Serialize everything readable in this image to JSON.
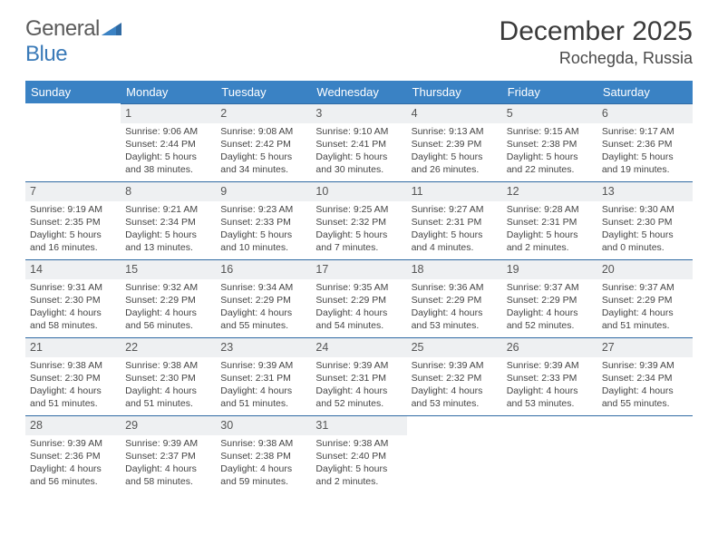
{
  "brand": {
    "part1": "General",
    "part2": "Blue"
  },
  "title": "December 2025",
  "location": "Rochegda, Russia",
  "header_bg": "#3a82c4",
  "header_text": "#ffffff",
  "daynum_bg": "#eef0f2",
  "border_color": "#2f6aa3",
  "weekdays": [
    "Sunday",
    "Monday",
    "Tuesday",
    "Wednesday",
    "Thursday",
    "Friday",
    "Saturday"
  ],
  "weeks": [
    [
      null,
      {
        "n": "1",
        "sr": "Sunrise: 9:06 AM",
        "ss": "Sunset: 2:44 PM",
        "d1": "Daylight: 5 hours",
        "d2": "and 38 minutes."
      },
      {
        "n": "2",
        "sr": "Sunrise: 9:08 AM",
        "ss": "Sunset: 2:42 PM",
        "d1": "Daylight: 5 hours",
        "d2": "and 34 minutes."
      },
      {
        "n": "3",
        "sr": "Sunrise: 9:10 AM",
        "ss": "Sunset: 2:41 PM",
        "d1": "Daylight: 5 hours",
        "d2": "and 30 minutes."
      },
      {
        "n": "4",
        "sr": "Sunrise: 9:13 AM",
        "ss": "Sunset: 2:39 PM",
        "d1": "Daylight: 5 hours",
        "d2": "and 26 minutes."
      },
      {
        "n": "5",
        "sr": "Sunrise: 9:15 AM",
        "ss": "Sunset: 2:38 PM",
        "d1": "Daylight: 5 hours",
        "d2": "and 22 minutes."
      },
      {
        "n": "6",
        "sr": "Sunrise: 9:17 AM",
        "ss": "Sunset: 2:36 PM",
        "d1": "Daylight: 5 hours",
        "d2": "and 19 minutes."
      }
    ],
    [
      {
        "n": "7",
        "sr": "Sunrise: 9:19 AM",
        "ss": "Sunset: 2:35 PM",
        "d1": "Daylight: 5 hours",
        "d2": "and 16 minutes."
      },
      {
        "n": "8",
        "sr": "Sunrise: 9:21 AM",
        "ss": "Sunset: 2:34 PM",
        "d1": "Daylight: 5 hours",
        "d2": "and 13 minutes."
      },
      {
        "n": "9",
        "sr": "Sunrise: 9:23 AM",
        "ss": "Sunset: 2:33 PM",
        "d1": "Daylight: 5 hours",
        "d2": "and 10 minutes."
      },
      {
        "n": "10",
        "sr": "Sunrise: 9:25 AM",
        "ss": "Sunset: 2:32 PM",
        "d1": "Daylight: 5 hours",
        "d2": "and 7 minutes."
      },
      {
        "n": "11",
        "sr": "Sunrise: 9:27 AM",
        "ss": "Sunset: 2:31 PM",
        "d1": "Daylight: 5 hours",
        "d2": "and 4 minutes."
      },
      {
        "n": "12",
        "sr": "Sunrise: 9:28 AM",
        "ss": "Sunset: 2:31 PM",
        "d1": "Daylight: 5 hours",
        "d2": "and 2 minutes."
      },
      {
        "n": "13",
        "sr": "Sunrise: 9:30 AM",
        "ss": "Sunset: 2:30 PM",
        "d1": "Daylight: 5 hours",
        "d2": "and 0 minutes."
      }
    ],
    [
      {
        "n": "14",
        "sr": "Sunrise: 9:31 AM",
        "ss": "Sunset: 2:30 PM",
        "d1": "Daylight: 4 hours",
        "d2": "and 58 minutes."
      },
      {
        "n": "15",
        "sr": "Sunrise: 9:32 AM",
        "ss": "Sunset: 2:29 PM",
        "d1": "Daylight: 4 hours",
        "d2": "and 56 minutes."
      },
      {
        "n": "16",
        "sr": "Sunrise: 9:34 AM",
        "ss": "Sunset: 2:29 PM",
        "d1": "Daylight: 4 hours",
        "d2": "and 55 minutes."
      },
      {
        "n": "17",
        "sr": "Sunrise: 9:35 AM",
        "ss": "Sunset: 2:29 PM",
        "d1": "Daylight: 4 hours",
        "d2": "and 54 minutes."
      },
      {
        "n": "18",
        "sr": "Sunrise: 9:36 AM",
        "ss": "Sunset: 2:29 PM",
        "d1": "Daylight: 4 hours",
        "d2": "and 53 minutes."
      },
      {
        "n": "19",
        "sr": "Sunrise: 9:37 AM",
        "ss": "Sunset: 2:29 PM",
        "d1": "Daylight: 4 hours",
        "d2": "and 52 minutes."
      },
      {
        "n": "20",
        "sr": "Sunrise: 9:37 AM",
        "ss": "Sunset: 2:29 PM",
        "d1": "Daylight: 4 hours",
        "d2": "and 51 minutes."
      }
    ],
    [
      {
        "n": "21",
        "sr": "Sunrise: 9:38 AM",
        "ss": "Sunset: 2:30 PM",
        "d1": "Daylight: 4 hours",
        "d2": "and 51 minutes."
      },
      {
        "n": "22",
        "sr": "Sunrise: 9:38 AM",
        "ss": "Sunset: 2:30 PM",
        "d1": "Daylight: 4 hours",
        "d2": "and 51 minutes."
      },
      {
        "n": "23",
        "sr": "Sunrise: 9:39 AM",
        "ss": "Sunset: 2:31 PM",
        "d1": "Daylight: 4 hours",
        "d2": "and 51 minutes."
      },
      {
        "n": "24",
        "sr": "Sunrise: 9:39 AM",
        "ss": "Sunset: 2:31 PM",
        "d1": "Daylight: 4 hours",
        "d2": "and 52 minutes."
      },
      {
        "n": "25",
        "sr": "Sunrise: 9:39 AM",
        "ss": "Sunset: 2:32 PM",
        "d1": "Daylight: 4 hours",
        "d2": "and 53 minutes."
      },
      {
        "n": "26",
        "sr": "Sunrise: 9:39 AM",
        "ss": "Sunset: 2:33 PM",
        "d1": "Daylight: 4 hours",
        "d2": "and 53 minutes."
      },
      {
        "n": "27",
        "sr": "Sunrise: 9:39 AM",
        "ss": "Sunset: 2:34 PM",
        "d1": "Daylight: 4 hours",
        "d2": "and 55 minutes."
      }
    ],
    [
      {
        "n": "28",
        "sr": "Sunrise: 9:39 AM",
        "ss": "Sunset: 2:36 PM",
        "d1": "Daylight: 4 hours",
        "d2": "and 56 minutes."
      },
      {
        "n": "29",
        "sr": "Sunrise: 9:39 AM",
        "ss": "Sunset: 2:37 PM",
        "d1": "Daylight: 4 hours",
        "d2": "and 58 minutes."
      },
      {
        "n": "30",
        "sr": "Sunrise: 9:38 AM",
        "ss": "Sunset: 2:38 PM",
        "d1": "Daylight: 4 hours",
        "d2": "and 59 minutes."
      },
      {
        "n": "31",
        "sr": "Sunrise: 9:38 AM",
        "ss": "Sunset: 2:40 PM",
        "d1": "Daylight: 5 hours",
        "d2": "and 2 minutes."
      },
      null,
      null,
      null
    ]
  ]
}
